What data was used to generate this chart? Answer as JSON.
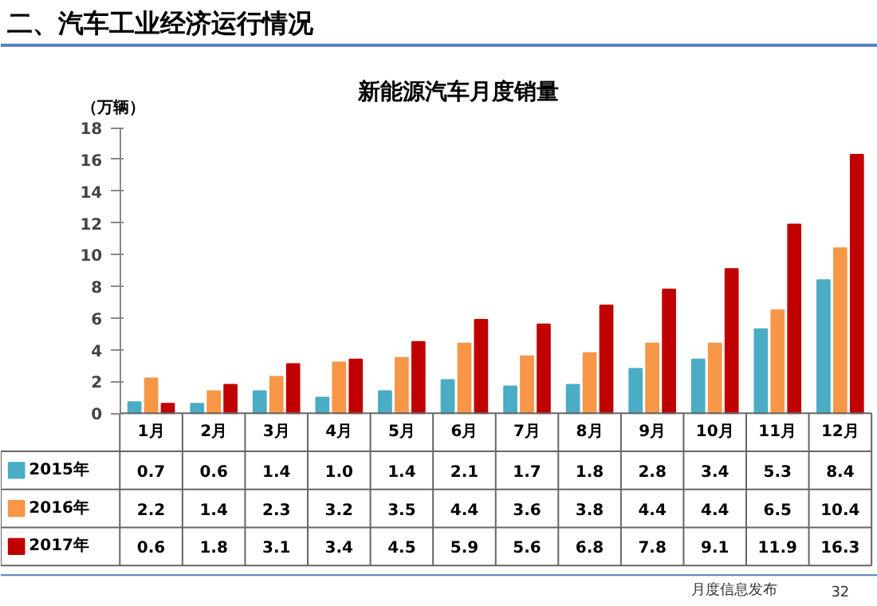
{
  "chart_data": {
    "type": "bar",
    "title": "新能源汽车月度销量",
    "ylabel": "（万辆）",
    "annotations": [
      "二、汽车工业经济运行情况",
      "月度信息发布",
      "32"
    ],
    "categories": [
      "1月",
      "2月",
      "3月",
      "4月",
      "5月",
      "6月",
      "7月",
      "8月",
      "9月",
      "10月",
      "11月",
      "12月"
    ],
    "series": [
      {
        "name": "2015年",
        "color": "#4bacc6",
        "values": [
          0.7,
          0.6,
          1.4,
          1.0,
          1.4,
          2.1,
          1.7,
          1.8,
          2.8,
          3.4,
          5.3,
          8.4
        ],
        "value_labels": [
          "0.7",
          "0.6",
          "1.4",
          "1.0",
          "1.4",
          "2.1",
          "1.7",
          "1.8",
          "2.8",
          "3.4",
          "5.3",
          "8.4"
        ]
      },
      {
        "name": "2016年",
        "color": "#f79646",
        "values": [
          2.2,
          1.4,
          2.3,
          3.2,
          3.5,
          4.4,
          3.6,
          3.8,
          4.4,
          4.4,
          6.5,
          10.4
        ]
      },
      {
        "name": "2017年",
        "color": "#c00000",
        "values": [
          0.6,
          1.8,
          3.1,
          3.4,
          4.5,
          5.9,
          5.6,
          6.8,
          7.8,
          9.1,
          11.9,
          16.3
        ]
      }
    ],
    "ylim": [
      0,
      18
    ],
    "yticks": [
      0,
      2,
      4,
      6,
      8,
      10,
      12,
      14,
      16,
      18
    ],
    "data_labels": true,
    "legend": "bottom",
    "grid": false
  }
}
